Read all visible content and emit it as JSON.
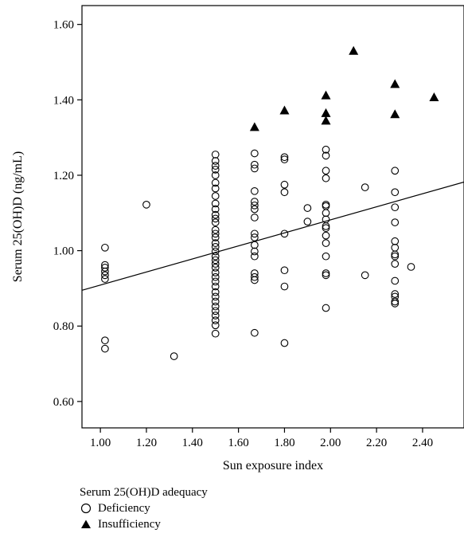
{
  "chart_data": {
    "type": "scatter",
    "xlabel": "Sun exposure index",
    "ylabel": "Serum 25(OH)D (ng/mL)",
    "xlim": [
      0.92,
      2.58
    ],
    "ylim": [
      0.53,
      1.65
    ],
    "x_ticks": [
      "1.00",
      "1.20",
      "1.40",
      "1.60",
      "1.80",
      "2.00",
      "2.20",
      "2.40"
    ],
    "y_ticks": [
      "0.60",
      "0.80",
      "1.00",
      "1.20",
      "1.40",
      "1.60"
    ],
    "legend_title": "Serum 25(OH)D adequacy",
    "legend_position": "bottom-left",
    "grid": false,
    "series": [
      {
        "name": "Deficiency",
        "marker": "open-circle",
        "color": "#000000",
        "points": [
          [
            1.02,
            1.008
          ],
          [
            1.02,
            0.962
          ],
          [
            1.02,
            0.955
          ],
          [
            1.02,
            0.945
          ],
          [
            1.02,
            0.935
          ],
          [
            1.02,
            0.925
          ],
          [
            1.02,
            0.762
          ],
          [
            1.02,
            0.74
          ],
          [
            1.2,
            1.122
          ],
          [
            1.32,
            0.72
          ],
          [
            1.5,
            1.255
          ],
          [
            1.5,
            1.238
          ],
          [
            1.5,
            1.225
          ],
          [
            1.5,
            1.215
          ],
          [
            1.5,
            1.2
          ],
          [
            1.5,
            1.18
          ],
          [
            1.5,
            1.165
          ],
          [
            1.5,
            1.145
          ],
          [
            1.5,
            1.125
          ],
          [
            1.5,
            1.11
          ],
          [
            1.5,
            1.095
          ],
          [
            1.5,
            1.085
          ],
          [
            1.5,
            1.075
          ],
          [
            1.5,
            1.055
          ],
          [
            1.5,
            1.045
          ],
          [
            1.5,
            1.035
          ],
          [
            1.5,
            1.02
          ],
          [
            1.5,
            1.01
          ],
          [
            1.5,
            0.998
          ],
          [
            1.5,
            0.985
          ],
          [
            1.5,
            0.975
          ],
          [
            1.5,
            0.965
          ],
          [
            1.5,
            0.955
          ],
          [
            1.5,
            0.942
          ],
          [
            1.5,
            0.93
          ],
          [
            1.5,
            0.918
          ],
          [
            1.5,
            0.905
          ],
          [
            1.5,
            0.89
          ],
          [
            1.5,
            0.878
          ],
          [
            1.5,
            0.865
          ],
          [
            1.5,
            0.852
          ],
          [
            1.5,
            0.84
          ],
          [
            1.5,
            0.828
          ],
          [
            1.5,
            0.815
          ],
          [
            1.5,
            0.802
          ],
          [
            1.5,
            0.78
          ],
          [
            1.67,
            1.258
          ],
          [
            1.67,
            1.228
          ],
          [
            1.67,
            1.218
          ],
          [
            1.67,
            1.158
          ],
          [
            1.67,
            1.13
          ],
          [
            1.67,
            1.12
          ],
          [
            1.67,
            1.11
          ],
          [
            1.67,
            1.088
          ],
          [
            1.67,
            1.045
          ],
          [
            1.67,
            1.035
          ],
          [
            1.67,
            1.015
          ],
          [
            1.67,
            0.998
          ],
          [
            1.67,
            0.985
          ],
          [
            1.67,
            0.94
          ],
          [
            1.67,
            0.93
          ],
          [
            1.67,
            0.922
          ],
          [
            1.67,
            0.782
          ],
          [
            1.8,
            1.248
          ],
          [
            1.8,
            1.242
          ],
          [
            1.8,
            1.175
          ],
          [
            1.8,
            1.155
          ],
          [
            1.8,
            1.045
          ],
          [
            1.8,
            0.948
          ],
          [
            1.8,
            0.905
          ],
          [
            1.8,
            0.755
          ],
          [
            1.9,
            1.113
          ],
          [
            1.9,
            1.077
          ],
          [
            1.98,
            1.268
          ],
          [
            1.98,
            1.252
          ],
          [
            1.98,
            1.212
          ],
          [
            1.98,
            1.192
          ],
          [
            1.98,
            1.122
          ],
          [
            1.98,
            1.118
          ],
          [
            1.98,
            1.1
          ],
          [
            1.98,
            1.083
          ],
          [
            1.98,
            1.065
          ],
          [
            1.98,
            1.06
          ],
          [
            1.98,
            1.04
          ],
          [
            1.98,
            1.02
          ],
          [
            1.98,
            0.985
          ],
          [
            1.98,
            0.94
          ],
          [
            1.98,
            0.935
          ],
          [
            1.98,
            0.848
          ],
          [
            2.15,
            1.168
          ],
          [
            2.15,
            0.935
          ],
          [
            2.28,
            1.212
          ],
          [
            2.28,
            1.155
          ],
          [
            2.28,
            1.115
          ],
          [
            2.28,
            1.075
          ],
          [
            2.28,
            1.025
          ],
          [
            2.28,
            1.008
          ],
          [
            2.28,
            0.99
          ],
          [
            2.28,
            0.985
          ],
          [
            2.28,
            0.965
          ],
          [
            2.28,
            0.92
          ],
          [
            2.28,
            0.885
          ],
          [
            2.28,
            0.878
          ],
          [
            2.28,
            0.865
          ],
          [
            2.28,
            0.86
          ],
          [
            2.35,
            0.957
          ]
        ]
      },
      {
        "name": "Insufficiency",
        "marker": "filled-triangle",
        "color": "#000000",
        "points": [
          [
            1.67,
            1.328
          ],
          [
            1.8,
            1.372
          ],
          [
            1.98,
            1.412
          ],
          [
            1.98,
            1.365
          ],
          [
            1.98,
            1.345
          ],
          [
            2.1,
            1.53
          ],
          [
            2.28,
            1.442
          ],
          [
            2.28,
            1.362
          ],
          [
            2.45,
            1.407
          ]
        ]
      }
    ],
    "trend_line": {
      "x": [
        0.92,
        2.58
      ],
      "y": [
        0.895,
        1.182
      ]
    }
  }
}
